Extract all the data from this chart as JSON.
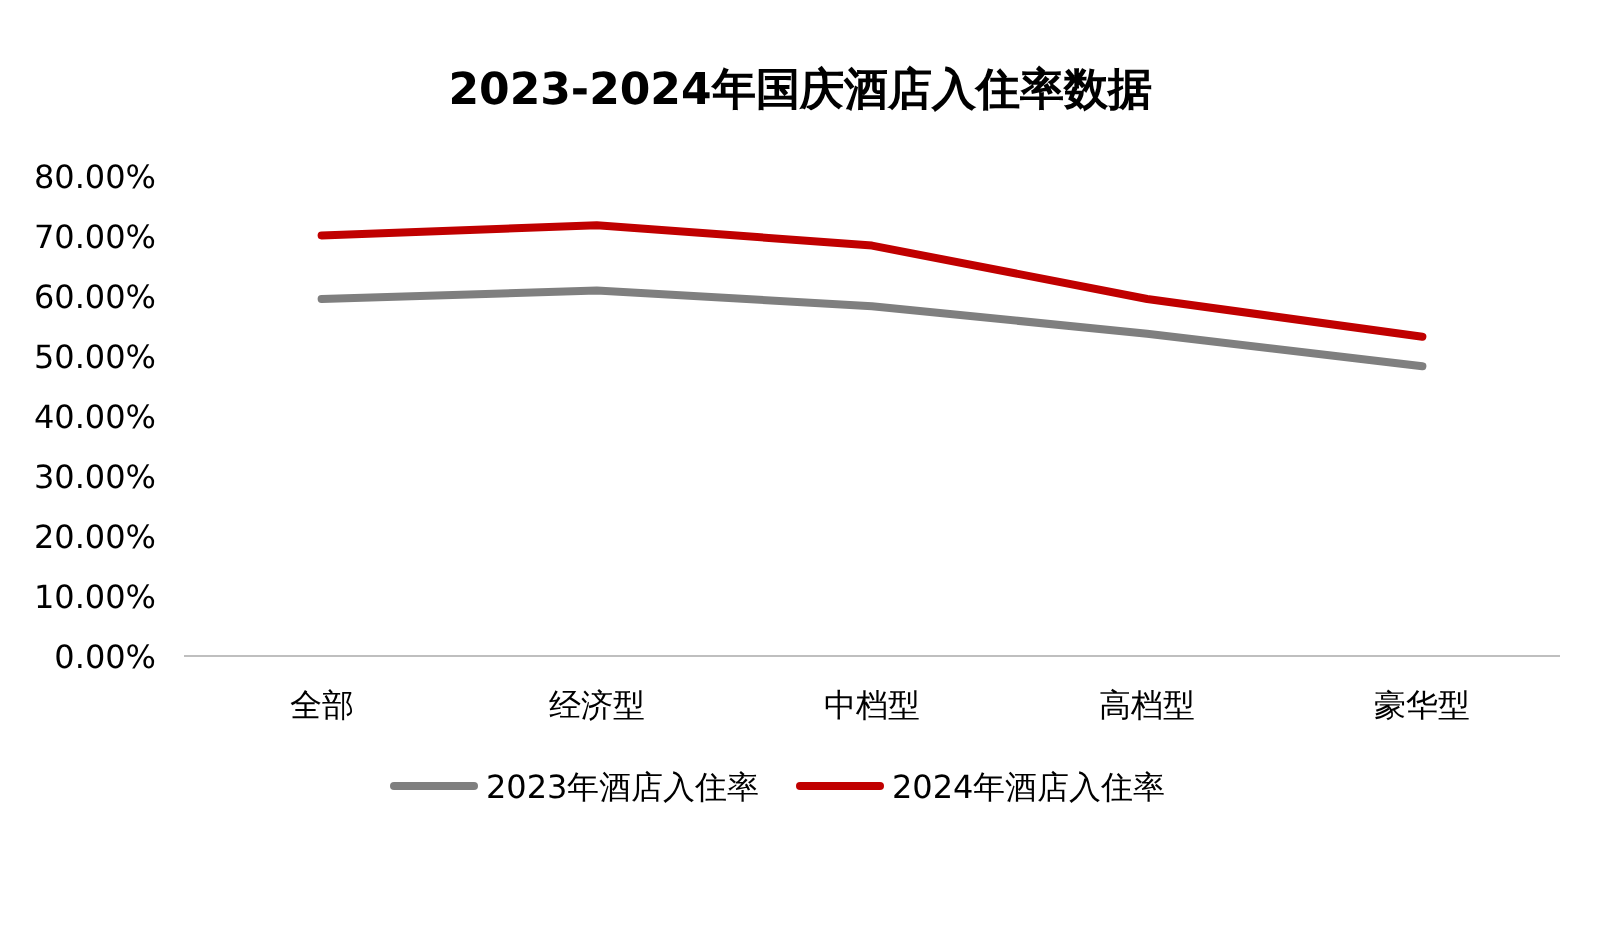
{
  "chart_data": {
    "type": "line",
    "title": "2023-2024年国庆酒店入住率数据",
    "categories": [
      "全部",
      "经济型",
      "中档型",
      "高档型",
      "豪华型"
    ],
    "series": [
      {
        "name": "2023年酒店入住率",
        "color": "#7f7f7f",
        "values": [
          59.5,
          60.9,
          58.3,
          53.7,
          48.3
        ]
      },
      {
        "name": "2024年酒店入住率",
        "color": "#c00000",
        "values": [
          70.1,
          71.8,
          68.4,
          59.5,
          53.2
        ]
      }
    ],
    "ylim": [
      0,
      80
    ],
    "yticks": [
      {
        "value": 0,
        "label": "0.00%"
      },
      {
        "value": 10,
        "label": "10.00%"
      },
      {
        "value": 20,
        "label": "20.00%"
      },
      {
        "value": 30,
        "label": "30.00%"
      },
      {
        "value": 40,
        "label": "40.00%"
      },
      {
        "value": 50,
        "label": "50.00%"
      },
      {
        "value": 60,
        "label": "60.00%"
      },
      {
        "value": 70,
        "label": "70.00%"
      },
      {
        "value": 80,
        "label": "80.00%"
      }
    ],
    "grid": false,
    "legend": "bottom",
    "marker": "none",
    "line_style": "solid"
  }
}
